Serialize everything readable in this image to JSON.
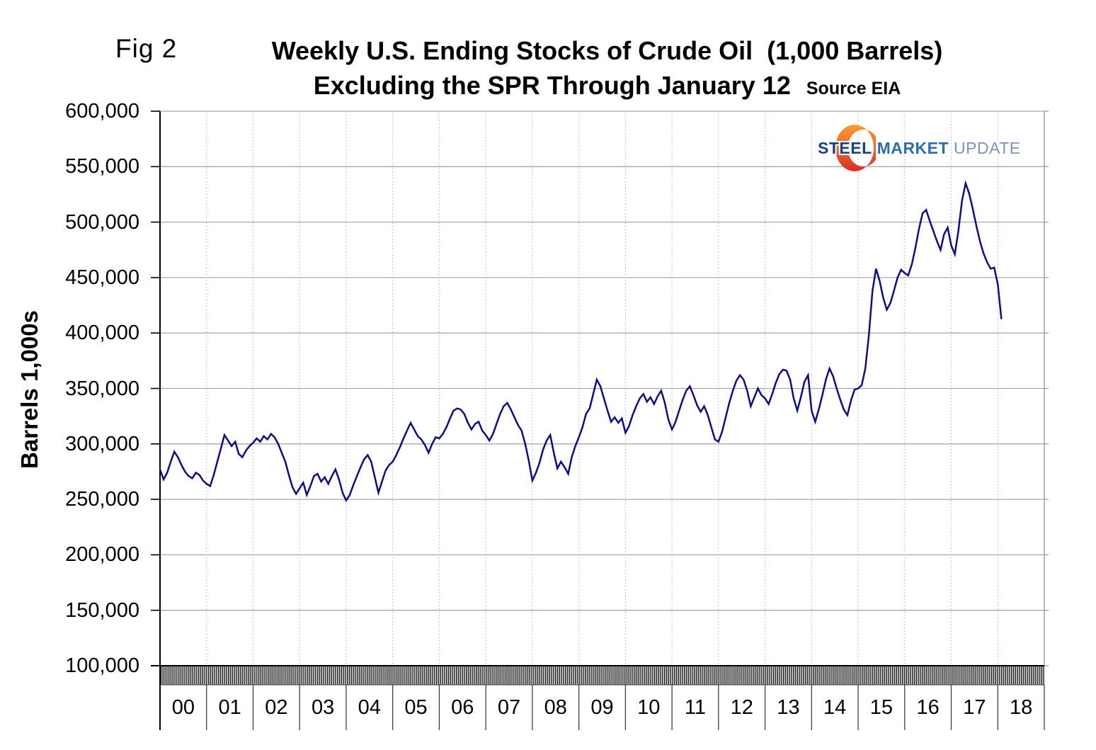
{
  "figure": {
    "fig_label": "Fig 2",
    "title_line1": "Weekly U.S. Ending Stocks of Crude Oil  (1,000 Barrels)",
    "title_line2": "Excluding the SPR Through January 12",
    "source_label": "Source EIA"
  },
  "logo": {
    "steel": "STEEL",
    "market": "MARKET",
    "update": "UPDATE"
  },
  "chart_data": {
    "type": "line",
    "title": "Weekly U.S. Ending Stocks of Crude Oil (1,000 Barrels) Excluding the SPR Through January 12",
    "ylabel": "Barrels 1,000s",
    "xlabel": "",
    "ylim": [
      100000,
      600000
    ],
    "ytick_values": [
      100000,
      150000,
      200000,
      250000,
      300000,
      350000,
      400000,
      450000,
      500000,
      550000,
      600000
    ],
    "ytick_labels": [
      "100,000",
      "150,000",
      "200,000",
      "250,000",
      "300,000",
      "350,000",
      "400,000",
      "450,000",
      "500,000",
      "550,000",
      "600,000"
    ],
    "x_year_labels": [
      "00",
      "01",
      "02",
      "03",
      "04",
      "05",
      "06",
      "07",
      "08",
      "09",
      "10",
      "11",
      "12",
      "13",
      "14",
      "15",
      "16",
      "17",
      "18"
    ],
    "x_start_year": 2000,
    "x_step_years": 0.0769231,
    "grid": "horizontal solid gray, vertical dotted per year, weekly tick hatch band along x-axis",
    "legend": "none",
    "line_color": "#0d0d85",
    "series": [
      {
        "name": "U.S. weekly ending stocks of crude oil excluding SPR (1,000 barrels)",
        "values": [
          277000,
          268000,
          274000,
          284000,
          293000,
          288000,
          281000,
          275000,
          271000,
          269000,
          274000,
          272000,
          267000,
          264000,
          262000,
          272000,
          284000,
          296000,
          308000,
          303000,
          298000,
          302000,
          291000,
          288000,
          294000,
          298000,
          301000,
          305000,
          302000,
          307000,
          304000,
          309000,
          306000,
          300000,
          292000,
          284000,
          272000,
          261000,
          255000,
          260000,
          265000,
          254000,
          262000,
          271000,
          273000,
          266000,
          270000,
          264000,
          271000,
          277000,
          268000,
          256000,
          249000,
          254000,
          263000,
          271000,
          279000,
          286000,
          290000,
          284000,
          270000,
          256000,
          266000,
          276000,
          281000,
          284000,
          290000,
          297000,
          305000,
          312000,
          319000,
          313000,
          307000,
          304000,
          299000,
          292000,
          300000,
          306000,
          305000,
          309000,
          315000,
          323000,
          330000,
          332000,
          331000,
          327000,
          319000,
          313000,
          318000,
          320000,
          312000,
          308000,
          303000,
          309000,
          318000,
          327000,
          334000,
          337000,
          331000,
          324000,
          317000,
          312000,
          300000,
          285000,
          267000,
          274000,
          283000,
          295000,
          303000,
          308000,
          292000,
          278000,
          284000,
          279000,
          273000,
          288000,
          298000,
          306000,
          315000,
          327000,
          332000,
          345000,
          358000,
          352000,
          341000,
          330000,
          320000,
          324000,
          319000,
          323000,
          310000,
          316000,
          326000,
          334000,
          341000,
          345000,
          338000,
          342000,
          336000,
          343000,
          348000,
          337000,
          322000,
          313000,
          320000,
          330000,
          340000,
          348000,
          352000,
          344000,
          335000,
          329000,
          334000,
          326000,
          315000,
          304000,
          302000,
          311000,
          324000,
          337000,
          348000,
          357000,
          362000,
          358000,
          348000,
          334000,
          342000,
          350000,
          344000,
          341000,
          336000,
          345000,
          355000,
          363000,
          367000,
          366000,
          358000,
          341000,
          330000,
          342000,
          356000,
          362000,
          330000,
          320000,
          331000,
          344000,
          358000,
          368000,
          361000,
          350000,
          340000,
          331000,
          326000,
          339000,
          349000,
          350000,
          353000,
          368000,
          398000,
          438000,
          458000,
          447000,
          432000,
          421000,
          427000,
          438000,
          450000,
          457000,
          454000,
          452000,
          462000,
          477000,
          494000,
          508000,
          511000,
          501000,
          492000,
          483000,
          475000,
          489000,
          495000,
          479000,
          471000,
          492000,
          519000,
          535000,
          526000,
          512000,
          497000,
          483000,
          472000,
          464000,
          458000,
          459000,
          444000,
          413000
        ]
      }
    ]
  }
}
